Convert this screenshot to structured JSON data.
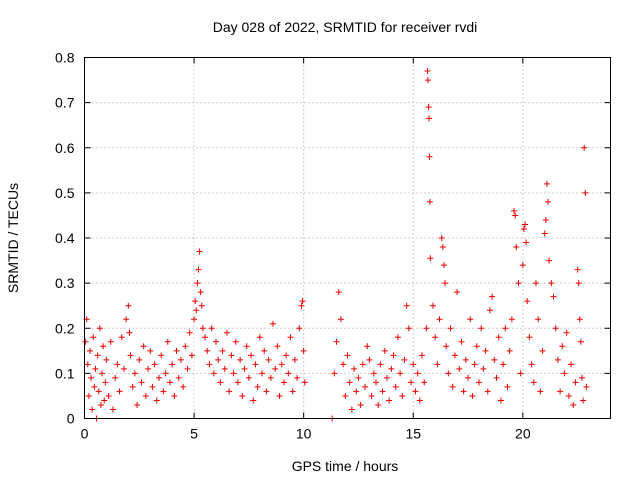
{
  "chart_data": {
    "type": "scatter",
    "title": "Day 028 of 2022, SRMTID for receiver rvdi",
    "xlabel": "GPS time / hours",
    "ylabel": "SRMTID / TECUs",
    "xlim": [
      0,
      24
    ],
    "ylim": [
      0,
      0.8
    ],
    "xticks": [
      0,
      5,
      10,
      15,
      20
    ],
    "xtick_labels": [
      "0",
      "5",
      "10",
      "15",
      "20"
    ],
    "yticks": [
      0,
      0.1,
      0.2,
      0.3,
      0.4,
      0.5,
      0.6,
      0.7,
      0.8
    ],
    "ytick_labels": [
      "0",
      "0.1",
      "0.2",
      "0.3",
      "0.4",
      "0.5",
      "0.6",
      "0.7",
      "0.8"
    ],
    "grid": true,
    "marker": "+",
    "color": "#ee0000",
    "series": [
      {
        "name": "SRMTID",
        "points": [
          [
            0.05,
            0.17
          ],
          [
            0.1,
            0.22
          ],
          [
            0.15,
            0.12
          ],
          [
            0.2,
            0.05
          ],
          [
            0.25,
            0.15
          ],
          [
            0.3,
            0.09
          ],
          [
            0.35,
            0.02
          ],
          [
            0.4,
            0.18
          ],
          [
            0.45,
            0.07
          ],
          [
            0.5,
            0.11
          ],
          [
            0.55,
            0.0
          ],
          [
            0.6,
            0.14
          ],
          [
            0.65,
            0.06
          ],
          [
            0.7,
            0.2
          ],
          [
            0.75,
            0.03
          ],
          [
            0.8,
            0.1
          ],
          [
            0.85,
            0.16
          ],
          [
            0.9,
            0.04
          ],
          [
            0.95,
            0.08
          ],
          [
            1.0,
            0.13
          ],
          [
            1.1,
            0.05
          ],
          [
            1.2,
            0.17
          ],
          [
            1.3,
            0.02
          ],
          [
            1.4,
            0.09
          ],
          [
            1.5,
            0.12
          ],
          [
            1.6,
            0.06
          ],
          [
            1.7,
            0.18
          ],
          [
            1.8,
            0.11
          ],
          [
            1.9,
            0.22
          ],
          [
            2.0,
            0.25
          ],
          [
            2.05,
            0.19
          ],
          [
            2.1,
            0.14
          ],
          [
            2.2,
            0.07
          ],
          [
            2.3,
            0.1
          ],
          [
            2.4,
            0.03
          ],
          [
            2.5,
            0.13
          ],
          [
            2.6,
            0.08
          ],
          [
            2.7,
            0.16
          ],
          [
            2.8,
            0.05
          ],
          [
            2.9,
            0.11
          ],
          [
            3.0,
            0.15
          ],
          [
            3.1,
            0.07
          ],
          [
            3.2,
            0.12
          ],
          [
            3.3,
            0.04
          ],
          [
            3.4,
            0.09
          ],
          [
            3.5,
            0.14
          ],
          [
            3.6,
            0.06
          ],
          [
            3.7,
            0.1
          ],
          [
            3.8,
            0.17
          ],
          [
            3.9,
            0.08
          ],
          [
            4.0,
            0.12
          ],
          [
            4.1,
            0.05
          ],
          [
            4.2,
            0.15
          ],
          [
            4.3,
            0.09
          ],
          [
            4.4,
            0.13
          ],
          [
            4.5,
            0.07
          ],
          [
            4.6,
            0.16
          ],
          [
            4.7,
            0.11
          ],
          [
            4.8,
            0.19
          ],
          [
            4.9,
            0.14
          ],
          [
            5.0,
            0.22
          ],
          [
            5.05,
            0.26
          ],
          [
            5.1,
            0.24
          ],
          [
            5.15,
            0.3
          ],
          [
            5.2,
            0.33
          ],
          [
            5.25,
            0.37
          ],
          [
            5.3,
            0.28
          ],
          [
            5.35,
            0.25
          ],
          [
            5.4,
            0.2
          ],
          [
            5.5,
            0.18
          ],
          [
            5.6,
            0.15
          ],
          [
            5.7,
            0.12
          ],
          [
            5.8,
            0.2
          ],
          [
            5.9,
            0.1
          ],
          [
            6.0,
            0.17
          ],
          [
            6.1,
            0.13
          ],
          [
            6.2,
            0.08
          ],
          [
            6.3,
            0.15
          ],
          [
            6.4,
            0.11
          ],
          [
            6.5,
            0.19
          ],
          [
            6.6,
            0.06
          ],
          [
            6.7,
            0.14
          ],
          [
            6.8,
            0.1
          ],
          [
            6.9,
            0.17
          ],
          [
            7.0,
            0.08
          ],
          [
            7.1,
            0.13
          ],
          [
            7.2,
            0.05
          ],
          [
            7.3,
            0.11
          ],
          [
            7.4,
            0.16
          ],
          [
            7.5,
            0.09
          ],
          [
            7.6,
            0.14
          ],
          [
            7.7,
            0.04
          ],
          [
            7.8,
            0.12
          ],
          [
            7.9,
            0.07
          ],
          [
            8.0,
            0.18
          ],
          [
            8.1,
            0.1
          ],
          [
            8.2,
            0.15
          ],
          [
            8.3,
            0.06
          ],
          [
            8.4,
            0.13
          ],
          [
            8.5,
            0.09
          ],
          [
            8.6,
            0.21
          ],
          [
            8.7,
            0.11
          ],
          [
            8.8,
            0.16
          ],
          [
            8.9,
            0.05
          ],
          [
            9.0,
            0.12
          ],
          [
            9.1,
            0.08
          ],
          [
            9.2,
            0.14
          ],
          [
            9.3,
            0.1
          ],
          [
            9.4,
            0.18
          ],
          [
            9.5,
            0.06
          ],
          [
            9.6,
            0.13
          ],
          [
            9.7,
            0.09
          ],
          [
            9.8,
            0.2
          ],
          [
            9.9,
            0.25
          ],
          [
            9.95,
            0.26
          ],
          [
            10.0,
            0.15
          ],
          [
            10.05,
            0.08
          ],
          [
            11.3,
            0.0
          ],
          [
            11.4,
            0.1
          ],
          [
            11.5,
            0.17
          ],
          [
            11.6,
            0.28
          ],
          [
            11.7,
            0.22
          ],
          [
            11.8,
            0.12
          ],
          [
            11.9,
            0.05
          ],
          [
            12.0,
            0.14
          ],
          [
            12.1,
            0.08
          ],
          [
            12.2,
            0.02
          ],
          [
            12.3,
            0.11
          ],
          [
            12.4,
            0.06
          ],
          [
            12.5,
            0.09
          ],
          [
            12.6,
            0.03
          ],
          [
            12.7,
            0.12
          ],
          [
            12.8,
            0.07
          ],
          [
            12.9,
            0.16
          ],
          [
            13.0,
            0.13
          ],
          [
            13.1,
            0.05
          ],
          [
            13.2,
            0.1
          ],
          [
            13.3,
            0.08
          ],
          [
            13.4,
            0.03
          ],
          [
            13.5,
            0.12
          ],
          [
            13.6,
            0.06
          ],
          [
            13.7,
            0.15
          ],
          [
            13.8,
            0.09
          ],
          [
            13.9,
            0.04
          ],
          [
            14.0,
            0.11
          ],
          [
            14.1,
            0.14
          ],
          [
            14.2,
            0.07
          ],
          [
            14.3,
            0.18
          ],
          [
            14.4,
            0.1
          ],
          [
            14.5,
            0.05
          ],
          [
            14.6,
            0.13
          ],
          [
            14.7,
            0.25
          ],
          [
            14.8,
            0.2
          ],
          [
            14.9,
            0.08
          ],
          [
            15.0,
            0.12
          ],
          [
            15.1,
            0.06
          ],
          [
            15.2,
            0.1
          ],
          [
            15.3,
            0.04
          ],
          [
            15.4,
            0.14
          ],
          [
            15.5,
            0.08
          ],
          [
            15.6,
            0.2
          ],
          [
            15.65,
            0.77
          ],
          [
            15.67,
            0.75
          ],
          [
            15.7,
            0.69
          ],
          [
            15.72,
            0.665
          ],
          [
            15.74,
            0.58
          ],
          [
            15.76,
            0.48
          ],
          [
            15.78,
            0.355
          ],
          [
            15.9,
            0.25
          ],
          [
            16.0,
            0.18
          ],
          [
            16.1,
            0.12
          ],
          [
            16.2,
            0.22
          ],
          [
            16.3,
            0.4
          ],
          [
            16.35,
            0.38
          ],
          [
            16.4,
            0.34
          ],
          [
            16.45,
            0.3
          ],
          [
            16.5,
            0.16
          ],
          [
            16.6,
            0.1
          ],
          [
            16.7,
            0.2
          ],
          [
            16.8,
            0.07
          ],
          [
            16.9,
            0.14
          ],
          [
            17.0,
            0.28
          ],
          [
            17.1,
            0.11
          ],
          [
            17.2,
            0.17
          ],
          [
            17.3,
            0.06
          ],
          [
            17.4,
            0.13
          ],
          [
            17.5,
            0.09
          ],
          [
            17.6,
            0.22
          ],
          [
            17.7,
            0.05
          ],
          [
            17.8,
            0.12
          ],
          [
            17.9,
            0.16
          ],
          [
            18.0,
            0.08
          ],
          [
            18.1,
            0.2
          ],
          [
            18.2,
            0.11
          ],
          [
            18.3,
            0.15
          ],
          [
            18.4,
            0.06
          ],
          [
            18.5,
            0.24
          ],
          [
            18.6,
            0.27
          ],
          [
            18.7,
            0.13
          ],
          [
            18.8,
            0.09
          ],
          [
            18.9,
            0.18
          ],
          [
            19.0,
            0.04
          ],
          [
            19.1,
            0.12
          ],
          [
            19.2,
            0.2
          ],
          [
            19.3,
            0.07
          ],
          [
            19.4,
            0.15
          ],
          [
            19.5,
            0.22
          ],
          [
            19.6,
            0.46
          ],
          [
            19.65,
            0.45
          ],
          [
            19.7,
            0.38
          ],
          [
            19.8,
            0.3
          ],
          [
            19.9,
            0.1
          ],
          [
            20.0,
            0.34
          ],
          [
            20.05,
            0.42
          ],
          [
            20.1,
            0.43
          ],
          [
            20.15,
            0.39
          ],
          [
            20.2,
            0.26
          ],
          [
            20.3,
            0.18
          ],
          [
            20.4,
            0.12
          ],
          [
            20.5,
            0.08
          ],
          [
            20.6,
            0.3
          ],
          [
            20.7,
            0.22
          ],
          [
            20.8,
            0.06
          ],
          [
            20.9,
            0.15
          ],
          [
            21.0,
            0.41
          ],
          [
            21.05,
            0.44
          ],
          [
            21.1,
            0.52
          ],
          [
            21.15,
            0.48
          ],
          [
            21.2,
            0.35
          ],
          [
            21.3,
            0.3
          ],
          [
            21.4,
            0.27
          ],
          [
            21.5,
            0.2
          ],
          [
            21.6,
            0.13
          ],
          [
            21.7,
            0.06
          ],
          [
            21.8,
            0.16
          ],
          [
            21.9,
            0.1
          ],
          [
            22.0,
            0.19
          ],
          [
            22.1,
            0.05
          ],
          [
            22.2,
            0.12
          ],
          [
            22.3,
            0.03
          ],
          [
            22.4,
            0.08
          ],
          [
            22.5,
            0.33
          ],
          [
            22.55,
            0.3
          ],
          [
            22.6,
            0.22
          ],
          [
            22.65,
            0.17
          ],
          [
            22.7,
            0.09
          ],
          [
            22.75,
            0.04
          ],
          [
            22.8,
            0.6
          ],
          [
            22.85,
            0.5
          ],
          [
            22.9,
            0.07
          ]
        ]
      }
    ]
  }
}
